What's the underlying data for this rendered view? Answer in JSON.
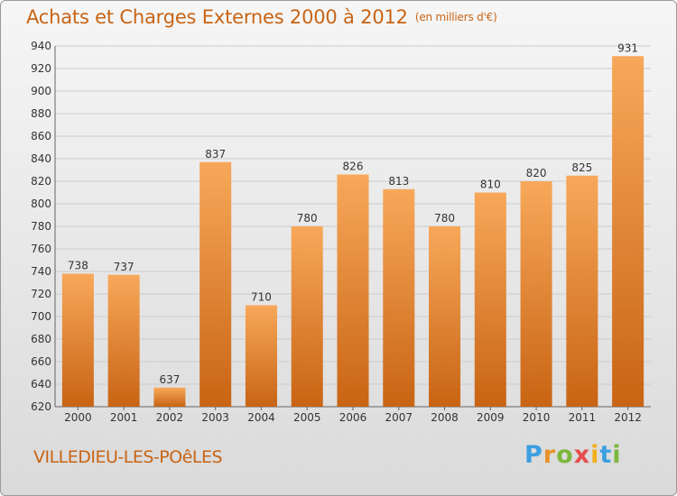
{
  "title": "Achats et Charges Externes 2000 à 2012",
  "unit": "(en milliers d'€)",
  "commune": "VILLEDIEU-LES-POêLES",
  "logo": [
    "P",
    "r",
    "o",
    "x",
    "i",
    "t",
    "i"
  ],
  "colors": {
    "bar_light": "#f8a85a",
    "bar_dark": "#c86414",
    "text": "#c86414",
    "grid": "#cccccc"
  },
  "chart_data": {
    "type": "bar",
    "title": "Achats et Charges Externes 2000 à 2012",
    "xlabel": "",
    "ylabel": "",
    "categories": [
      "2000",
      "2001",
      "2002",
      "2003",
      "2004",
      "2005",
      "2006",
      "2007",
      "2008",
      "2009",
      "2010",
      "2011",
      "2012"
    ],
    "values": [
      738,
      737,
      637,
      837,
      710,
      780,
      826,
      813,
      780,
      810,
      820,
      825,
      931
    ],
    "ylim": [
      620,
      940
    ],
    "yticks": [
      620,
      640,
      660,
      680,
      700,
      720,
      740,
      760,
      780,
      800,
      820,
      840,
      860,
      880,
      900,
      920,
      940
    ],
    "grid": true,
    "data_labels": true
  }
}
